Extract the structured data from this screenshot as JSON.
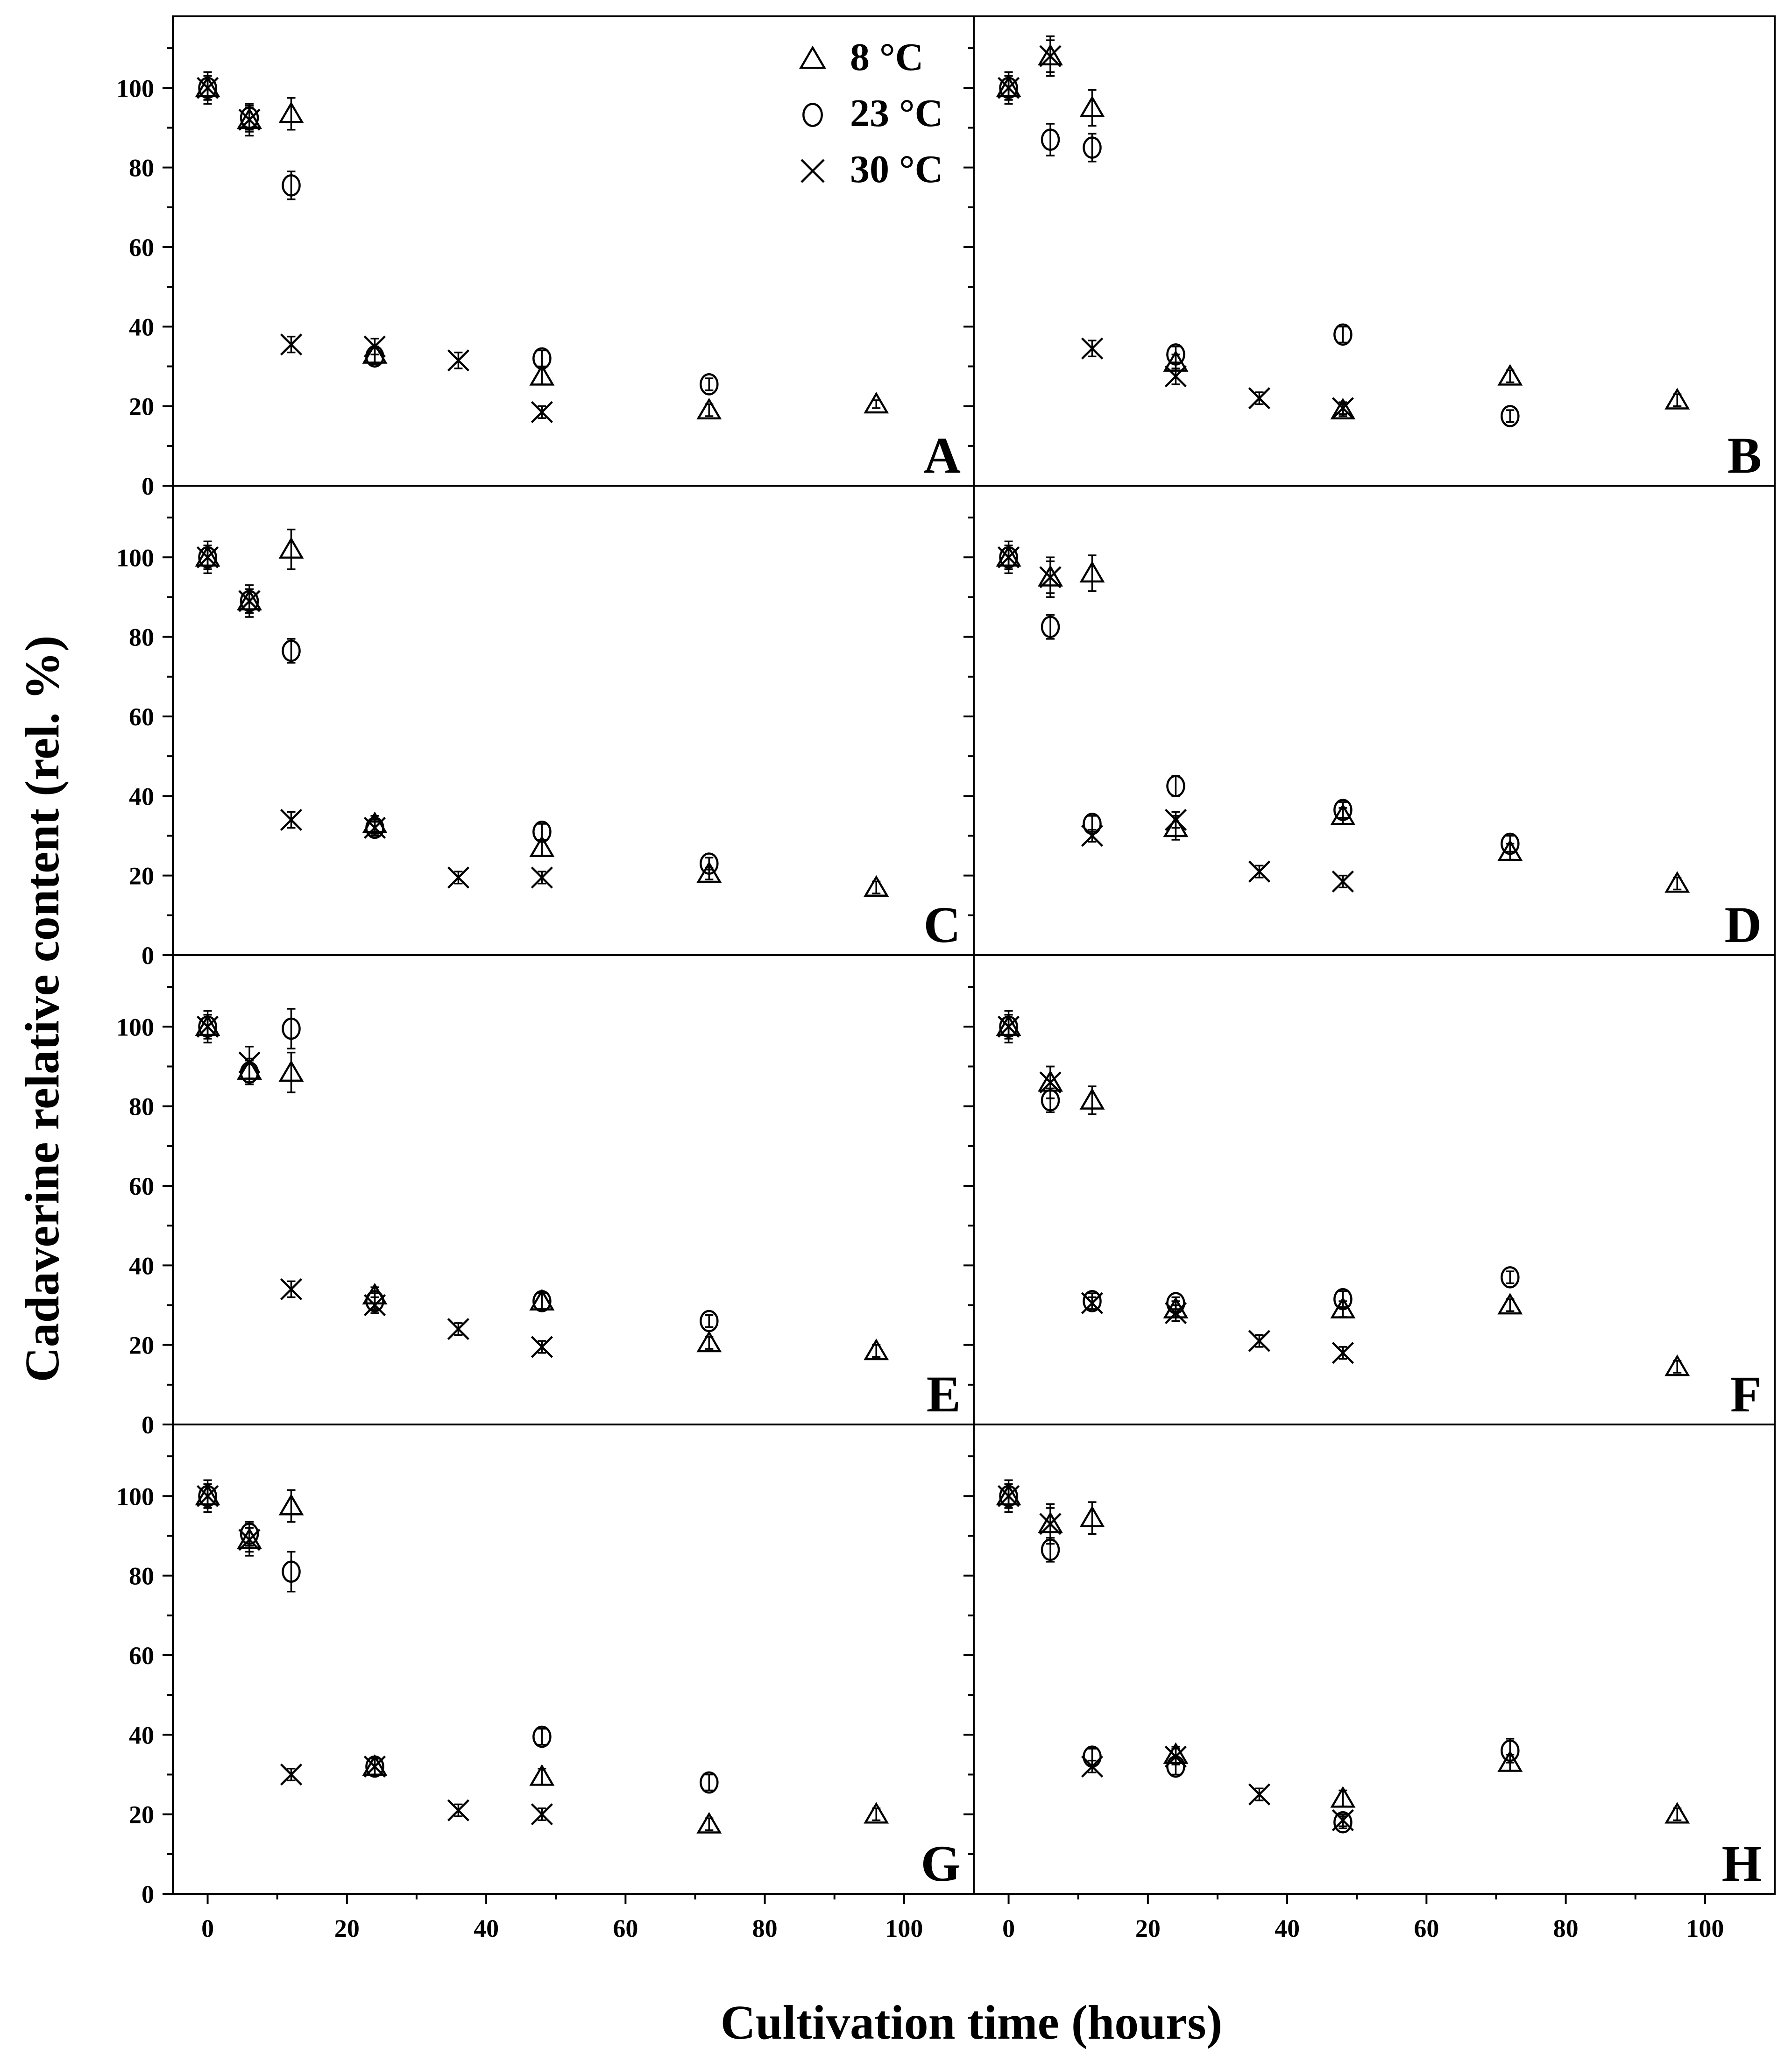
{
  "chart_data": {
    "type": "scatter",
    "xlabel": "Cultivation time (hours)",
    "ylabel": "Cadaverine relative content (rel. %)",
    "xlim": [
      -5,
      110
    ],
    "ylim": [
      0,
      118
    ],
    "x_ticks": [
      0,
      20,
      40,
      60,
      80,
      100
    ],
    "y_ticks": [
      0,
      20,
      40,
      60,
      80,
      100
    ],
    "legend": {
      "position": "top-right of panel A",
      "entries": [
        {
          "name": "8 °C",
          "marker": "triangle"
        },
        {
          "name": "23 °C",
          "marker": "circle"
        },
        {
          "name": "30 °C",
          "marker": "cross"
        }
      ]
    },
    "panels": [
      {
        "label": "A",
        "series": [
          {
            "name": "8 °C",
            "x": [
              0,
              6,
              12,
              24,
              48,
              72,
              96
            ],
            "y": [
              100,
              92,
              93.5,
              33,
              27.5,
              19,
              20.5
            ],
            "err": [
              3,
              3,
              4,
              2,
              2,
              1.5,
              1
            ]
          },
          {
            "name": "23 °C",
            "x": [
              0,
              6,
              12,
              24,
              48,
              72
            ],
            "y": [
              100,
              92.5,
              75.5,
              32.5,
              32,
              25.5
            ],
            "err": [
              3,
              3,
              3.5,
              2,
              2,
              1.5
            ]
          },
          {
            "name": "30 °C",
            "x": [
              0,
              6,
              12,
              24,
              36,
              48
            ],
            "y": [
              100,
              92,
              35.5,
              35,
              31.5,
              18.5
            ],
            "err": [
              4,
              4,
              2,
              2,
              2,
              1.5
            ]
          }
        ]
      },
      {
        "label": "B",
        "series": [
          {
            "name": "8 °C",
            "x": [
              0,
              6,
              12,
              24,
              48,
              72,
              96
            ],
            "y": [
              100,
              108,
              95,
              31,
              19,
              27.5,
              21.5
            ],
            "err": [
              3,
              4,
              4.5,
              2,
              1.5,
              1.5,
              1.5
            ]
          },
          {
            "name": "23 °C",
            "x": [
              0,
              6,
              12,
              24,
              48,
              72
            ],
            "y": [
              100,
              87,
              85,
              33,
              38,
              17.5
            ],
            "err": [
              3,
              4,
              3.5,
              2,
              2,
              1.5
            ]
          },
          {
            "name": "30 °C",
            "x": [
              0,
              6,
              12,
              24,
              36,
              48
            ],
            "y": [
              100,
              108,
              34.5,
              27.5,
              22,
              19.5
            ],
            "err": [
              4,
              5,
              2,
              2,
              1.5,
              1.5
            ]
          }
        ]
      },
      {
        "label": "C",
        "series": [
          {
            "name": "8 °C",
            "x": [
              0,
              6,
              12,
              24,
              48,
              72,
              96
            ],
            "y": [
              100,
              89,
              102,
              33,
              27,
              20.5,
              17
            ],
            "err": [
              3,
              3,
              5,
              2,
              2,
              1.5,
              1.5
            ]
          },
          {
            "name": "23 °C",
            "x": [
              0,
              6,
              12,
              24,
              48,
              72
            ],
            "y": [
              100,
              89,
              76.5,
              32,
              31,
              23
            ],
            "err": [
              3,
              3,
              3,
              1.5,
              2,
              1.5
            ]
          },
          {
            "name": "30 °C",
            "x": [
              0,
              6,
              12,
              24,
              36,
              48
            ],
            "y": [
              100,
              89,
              34,
              32,
              19.5,
              19.5
            ],
            "err": [
              4,
              4,
              2,
              2,
              1.5,
              1.5
            ]
          }
        ]
      },
      {
        "label": "D",
        "series": [
          {
            "name": "8 °C",
            "x": [
              0,
              6,
              12,
              24,
              48,
              72,
              96
            ],
            "y": [
              100,
              95,
              96,
              32,
              35,
              26,
              18
            ],
            "err": [
              3,
              4,
              4.5,
              3,
              2,
              2,
              1.5
            ]
          },
          {
            "name": "23 °C",
            "x": [
              0,
              6,
              12,
              24,
              48,
              72
            ],
            "y": [
              100,
              82.5,
              33,
              42.5,
              36.5,
              28
            ],
            "err": [
              3,
              3,
              2,
              2.5,
              2,
              2
            ]
          },
          {
            "name": "30 °C",
            "x": [
              0,
              6,
              12,
              24,
              36,
              48
            ],
            "y": [
              100,
              95,
              30,
              34,
              21,
              18.5
            ],
            "err": [
              4,
              5,
              1.5,
              2,
              1.5,
              1.5
            ]
          }
        ]
      },
      {
        "label": "E",
        "series": [
          {
            "name": "8 °C",
            "x": [
              0,
              6,
              12,
              24,
              48,
              72,
              96
            ],
            "y": [
              100,
              89,
              88.5,
              32.5,
              31,
              20.5,
              18.5
            ],
            "err": [
              3,
              3,
              5,
              2,
              2,
              1.5,
              1.5
            ]
          },
          {
            "name": "23 °C",
            "x": [
              0,
              6,
              12,
              24,
              48,
              72
            ],
            "y": [
              100,
              88.5,
              99.5,
              31,
              31,
              26
            ],
            "err": [
              3,
              3,
              5,
              2,
              2,
              1.5
            ]
          },
          {
            "name": "30 °C",
            "x": [
              0,
              6,
              12,
              24,
              36,
              48
            ],
            "y": [
              100,
              91,
              34,
              30,
              24,
              19.5
            ],
            "err": [
              4,
              4,
              2,
              2,
              1.5,
              1.5
            ]
          }
        ]
      },
      {
        "label": "F",
        "series": [
          {
            "name": "8 °C",
            "x": [
              0,
              6,
              12,
              24,
              48,
              72,
              96
            ],
            "y": [
              100,
              86,
              81.5,
              29,
              29,
              30,
              14.5
            ],
            "err": [
              3,
              4,
              3.5,
              2,
              2,
              1.5,
              1.5
            ]
          },
          {
            "name": "23 °C",
            "x": [
              0,
              6,
              12,
              24,
              48,
              72
            ],
            "y": [
              100,
              81.5,
              31,
              30.5,
              31.5,
              37
            ],
            "err": [
              3,
              3,
              2,
              1.5,
              2,
              1.5
            ]
          },
          {
            "name": "30 °C",
            "x": [
              0,
              6,
              12,
              24,
              36,
              48
            ],
            "y": [
              100,
              86,
              30.5,
              28,
              21,
              18
            ],
            "err": [
              4,
              4,
              1.5,
              2,
              1.5,
              1.5
            ]
          }
        ]
      },
      {
        "label": "G",
        "series": [
          {
            "name": "8 °C",
            "x": [
              0,
              6,
              12,
              24,
              48,
              72,
              96
            ],
            "y": [
              100,
              89,
              97.5,
              32,
              29.5,
              17.5,
              20
            ],
            "err": [
              3,
              3,
              4,
              2,
              2,
              1.5,
              1.5
            ]
          },
          {
            "name": "23 °C",
            "x": [
              0,
              6,
              12,
              24,
              48,
              72
            ],
            "y": [
              100,
              90.5,
              81,
              32,
              39.5,
              28
            ],
            "err": [
              3,
              3,
              5,
              2,
              2,
              2
            ]
          },
          {
            "name": "30 °C",
            "x": [
              0,
              6,
              12,
              24,
              36,
              48
            ],
            "y": [
              100,
              89,
              30,
              32,
              21,
              20
            ],
            "err": [
              4,
              4,
              1.5,
              2,
              1.5,
              1.5
            ]
          }
        ]
      },
      {
        "label": "H",
        "series": [
          {
            "name": "8 °C",
            "x": [
              0,
              6,
              12,
              24,
              48,
              72,
              96
            ],
            "y": [
              100,
              93,
              94.5,
              35,
              24,
              33,
              20
            ],
            "err": [
              3,
              4,
              4,
              2,
              2,
              2,
              1.5
            ]
          },
          {
            "name": "23 °C",
            "x": [
              0,
              6,
              12,
              24,
              48,
              72
            ],
            "y": [
              100,
              86.5,
              34.5,
              32,
              18,
              36
            ],
            "err": [
              3,
              3,
              2,
              2,
              1.5,
              3
            ]
          },
          {
            "name": "30 °C",
            "x": [
              0,
              6,
              12,
              24,
              36,
              48
            ],
            "y": [
              100,
              93,
              32,
              34.5,
              25,
              18.5
            ],
            "err": [
              4,
              5,
              1.5,
              2,
              1.5,
              1.5
            ]
          }
        ]
      }
    ]
  }
}
